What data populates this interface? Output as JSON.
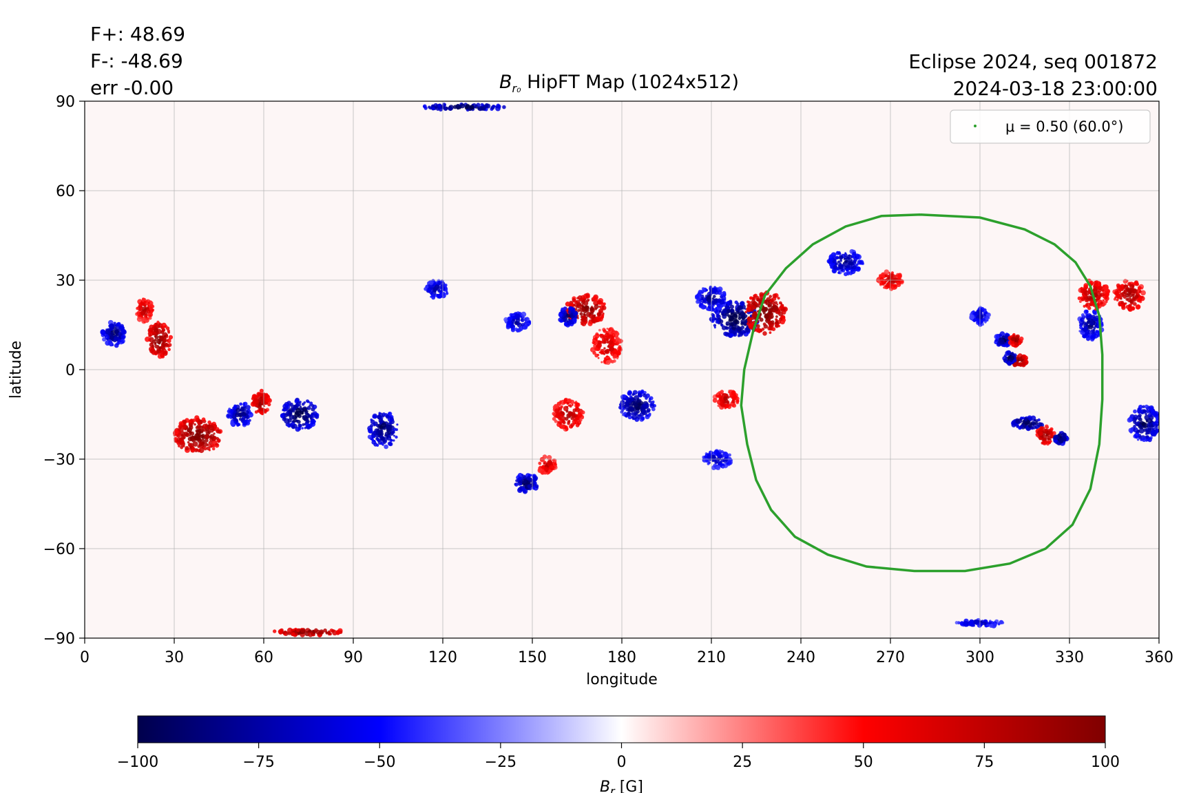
{
  "header": {
    "flux_pos": "F+: 48.69",
    "flux_neg": "F-: -48.69",
    "flux_err": "err -0.00",
    "event": "Eclipse 2024, seq 001872",
    "datetime": "2024-03-18 23:00:00",
    "title_symbol": "B",
    "title_subscript": "r₀",
    "title_rest": " HipFT Map (1024x512)"
  },
  "chart_data": {
    "type": "heatmap",
    "title": "B_r0 HipFT Map (1024x512)",
    "xlabel": "longitude",
    "ylabel": "latitude",
    "xlim": [
      0,
      360
    ],
    "ylim": [
      -90,
      90
    ],
    "xticks": [
      0,
      30,
      60,
      90,
      120,
      150,
      180,
      210,
      240,
      270,
      300,
      330,
      360
    ],
    "yticks": [
      -90,
      -60,
      -30,
      0,
      30,
      60,
      90
    ],
    "xtick_labels": [
      "0",
      "30",
      "60",
      "90",
      "120",
      "150",
      "180",
      "210",
      "240",
      "270",
      "300",
      "330",
      "360"
    ],
    "ytick_labels": [
      "−90",
      "−60",
      "−30",
      "0",
      "30",
      "60",
      "90"
    ],
    "grid": true,
    "legend": {
      "label": "μ = 0.50 (60.0°)",
      "placement": "top-right",
      "color": "#2ca02c"
    },
    "colorbar": {
      "label": "B_r [G]",
      "label_symbol": "B",
      "label_subscript": "r",
      "label_unit": " [G]",
      "range": [
        -100,
        100
      ],
      "ticks": [
        -100,
        -75,
        -50,
        -25,
        0,
        25,
        50,
        75,
        100
      ],
      "tick_labels": [
        "−100",
        "−75",
        "−50",
        "−25",
        "0",
        "25",
        "50",
        "75",
        "100"
      ],
      "colormap": "seismic",
      "stops": [
        "#00004c",
        "#0000ff",
        "#ffffff",
        "#ff0000",
        "#800000"
      ]
    },
    "mu_contour": {
      "mu": 0.5,
      "angle_deg": 60.0,
      "color": "#2ca02c",
      "points": [
        [
          280,
          52
        ],
        [
          300,
          51
        ],
        [
          315,
          47
        ],
        [
          325,
          42
        ],
        [
          332,
          36
        ],
        [
          337,
          28
        ],
        [
          340,
          18
        ],
        [
          341,
          5
        ],
        [
          341,
          -10
        ],
        [
          340,
          -25
        ],
        [
          337,
          -40
        ],
        [
          331,
          -52
        ],
        [
          322,
          -60
        ],
        [
          310,
          -65
        ],
        [
          295,
          -67.5
        ],
        [
          278,
          -67.5
        ],
        [
          262,
          -66
        ],
        [
          249,
          -62
        ],
        [
          238,
          -56
        ],
        [
          230,
          -47
        ],
        [
          225,
          -37
        ],
        [
          222,
          -25
        ],
        [
          220,
          -12
        ],
        [
          221,
          0
        ],
        [
          224,
          13
        ],
        [
          228,
          25
        ],
        [
          235,
          34
        ],
        [
          244,
          42
        ],
        [
          255,
          48
        ],
        [
          267,
          51.5
        ],
        [
          280,
          52
        ]
      ]
    },
    "active_regions": [
      {
        "lon": 218,
        "lat": 17,
        "value": -100,
        "rlon": 8,
        "rlat": 6
      },
      {
        "lon": 228,
        "lat": 19,
        "value": 100,
        "rlon": 7,
        "rlat": 7
      },
      {
        "lon": 168,
        "lat": 20,
        "value": 95,
        "rlon": 7,
        "rlat": 5
      },
      {
        "lon": 175,
        "lat": 8,
        "value": 70,
        "rlon": 5,
        "rlat": 6
      },
      {
        "lon": 162,
        "lat": 18,
        "value": -90,
        "rlon": 3,
        "rlat": 3
      },
      {
        "lon": 210,
        "lat": 24,
        "value": -80,
        "rlon": 5,
        "rlat": 4
      },
      {
        "lon": 10,
        "lat": 12,
        "value": -85,
        "rlon": 4,
        "rlat": 4
      },
      {
        "lon": 25,
        "lat": 10,
        "value": 95,
        "rlon": 4,
        "rlat": 6
      },
      {
        "lon": 20,
        "lat": 20,
        "value": 75,
        "rlon": 3,
        "rlat": 4
      },
      {
        "lon": 38,
        "lat": -22,
        "value": 100,
        "rlon": 8,
        "rlat": 6
      },
      {
        "lon": 52,
        "lat": -15,
        "value": -85,
        "rlon": 4,
        "rlat": 4
      },
      {
        "lon": 59,
        "lat": -11,
        "value": 85,
        "rlon": 3,
        "rlat": 4
      },
      {
        "lon": 72,
        "lat": -15,
        "value": -100,
        "rlon": 6,
        "rlat": 5
      },
      {
        "lon": 100,
        "lat": -20,
        "value": -90,
        "rlon": 5,
        "rlat": 6
      },
      {
        "lon": 118,
        "lat": 27,
        "value": -75,
        "rlon": 4,
        "rlat": 3
      },
      {
        "lon": 145,
        "lat": 16,
        "value": -75,
        "rlon": 4,
        "rlat": 3
      },
      {
        "lon": 148,
        "lat": -38,
        "value": -90,
        "rlon": 4,
        "rlat": 3
      },
      {
        "lon": 162,
        "lat": -15,
        "value": 80,
        "rlon": 5,
        "rlat": 5
      },
      {
        "lon": 155,
        "lat": -32,
        "value": 70,
        "rlon": 3,
        "rlat": 3
      },
      {
        "lon": 185,
        "lat": -12,
        "value": -90,
        "rlon": 6,
        "rlat": 5
      },
      {
        "lon": 215,
        "lat": -10,
        "value": 75,
        "rlon": 4,
        "rlat": 3
      },
      {
        "lon": 212,
        "lat": -30,
        "value": -70,
        "rlon": 5,
        "rlat": 3
      },
      {
        "lon": 255,
        "lat": 36,
        "value": -80,
        "rlon": 6,
        "rlat": 4
      },
      {
        "lon": 270,
        "lat": 30,
        "value": 75,
        "rlon": 4,
        "rlat": 3
      },
      {
        "lon": 308,
        "lat": 10,
        "value": -90,
        "rlon": 3,
        "rlat": 2
      },
      {
        "lon": 312,
        "lat": 10,
        "value": 90,
        "rlon": 2,
        "rlat": 2
      },
      {
        "lon": 313,
        "lat": 3,
        "value": 100,
        "rlon": 3,
        "rlat": 2
      },
      {
        "lon": 310,
        "lat": 4,
        "value": -100,
        "rlon": 2,
        "rlat": 2
      },
      {
        "lon": 316,
        "lat": -18,
        "value": -100,
        "rlon": 5,
        "rlat": 2
      },
      {
        "lon": 322,
        "lat": -22,
        "value": 90,
        "rlon": 3,
        "rlat": 3
      },
      {
        "lon": 327,
        "lat": -23,
        "value": -100,
        "rlon": 2,
        "rlat": 2
      },
      {
        "lon": 337,
        "lat": 15,
        "value": -80,
        "rlon": 4,
        "rlat": 5
      },
      {
        "lon": 338,
        "lat": 25,
        "value": 80,
        "rlon": 5,
        "rlat": 5
      },
      {
        "lon": 350,
        "lat": 25,
        "value": 85,
        "rlon": 5,
        "rlat": 5
      },
      {
        "lon": 355,
        "lat": -18,
        "value": -90,
        "rlon": 5,
        "rlat": 6
      },
      {
        "lon": 300,
        "lat": 18,
        "value": -70,
        "rlon": 3,
        "rlat": 3
      },
      {
        "lon": 127,
        "lat": 88,
        "value": -100,
        "rlon": 14,
        "rlat": 1
      },
      {
        "lon": 75,
        "lat": -88,
        "value": 100,
        "rlon": 12,
        "rlat": 1
      },
      {
        "lon": 300,
        "lat": -85,
        "value": -70,
        "rlon": 8,
        "rlat": 1
      }
    ]
  }
}
